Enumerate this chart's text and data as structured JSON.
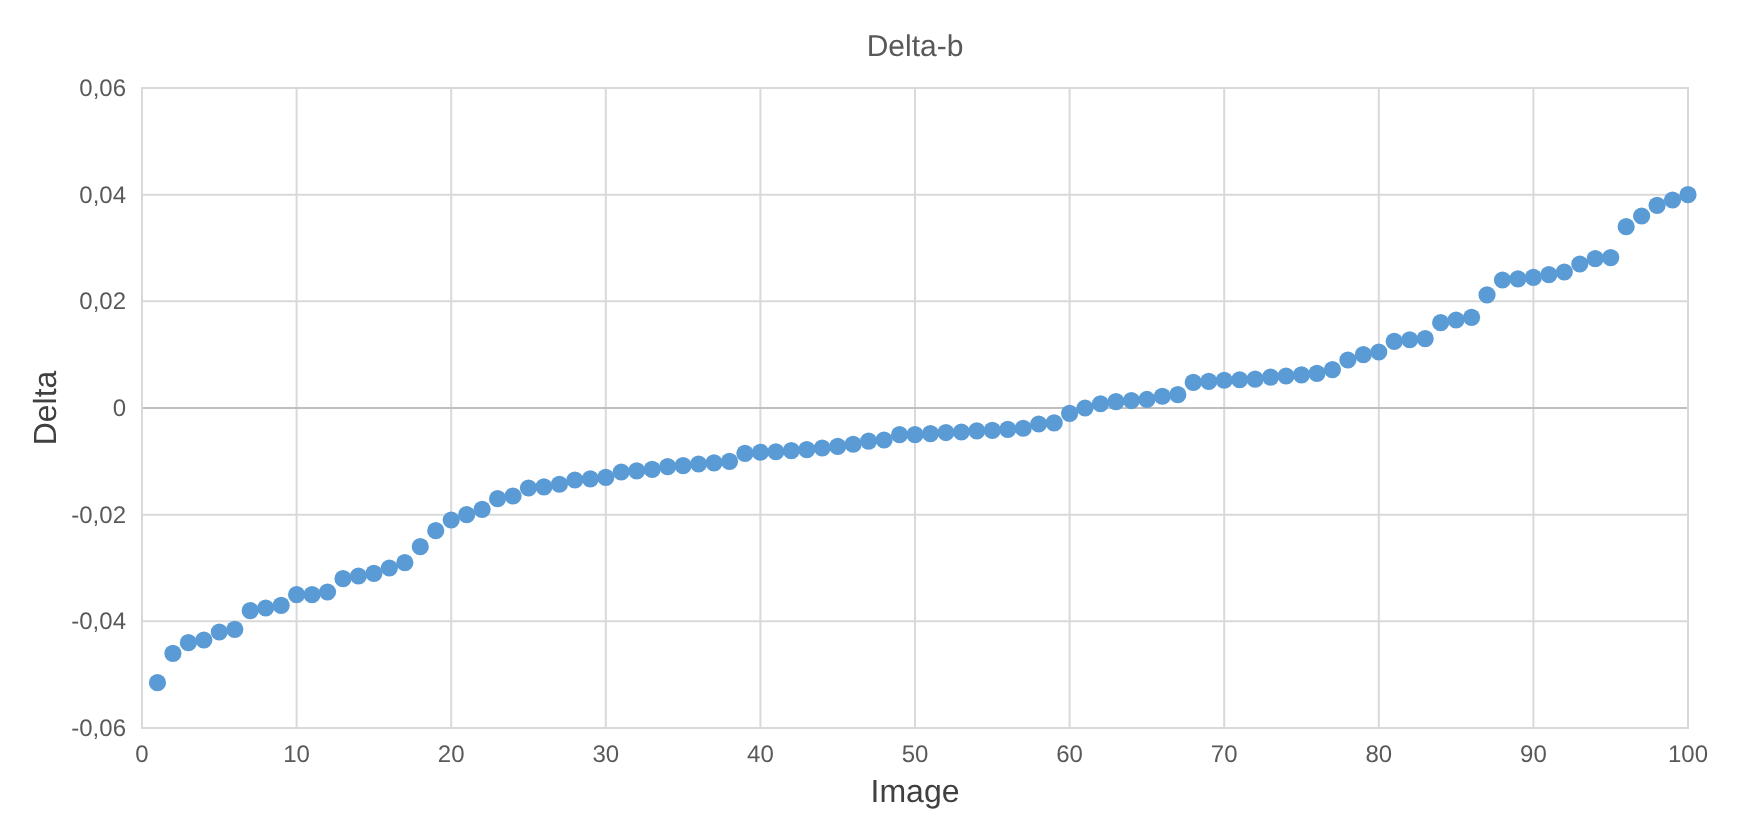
{
  "chart_data": {
    "type": "scatter",
    "title": "Delta-b",
    "xlabel": "Image",
    "ylabel": "Delta",
    "x": [
      1,
      2,
      3,
      4,
      5,
      6,
      7,
      8,
      9,
      10,
      11,
      12,
      13,
      14,
      15,
      16,
      17,
      18,
      19,
      20,
      21,
      22,
      23,
      24,
      25,
      26,
      27,
      28,
      29,
      30,
      31,
      32,
      33,
      34,
      35,
      36,
      37,
      38,
      39,
      40,
      41,
      42,
      43,
      44,
      45,
      46,
      47,
      48,
      49,
      50,
      51,
      52,
      53,
      54,
      55,
      56,
      57,
      58,
      59,
      60,
      61,
      62,
      63,
      64,
      65,
      66,
      67,
      68,
      69,
      70,
      71,
      72,
      73,
      74,
      75,
      76,
      77,
      78,
      79,
      80,
      81,
      82,
      83,
      84,
      85,
      86,
      87,
      88,
      89,
      90,
      91,
      92,
      93,
      94,
      95,
      96,
      97,
      98,
      99,
      100
    ],
    "series": [
      {
        "color": "#5b9bd5",
        "values": [
          -0.0515,
          -0.046,
          -0.044,
          -0.0435,
          -0.042,
          -0.0415,
          -0.038,
          -0.0375,
          -0.037,
          -0.035,
          -0.035,
          -0.0345,
          -0.032,
          -0.0315,
          -0.031,
          -0.03,
          -0.029,
          -0.026,
          -0.023,
          -0.021,
          -0.02,
          -0.019,
          -0.017,
          -0.0165,
          -0.015,
          -0.0148,
          -0.0143,
          -0.0135,
          -0.0133,
          -0.013,
          -0.012,
          -0.0118,
          -0.0115,
          -0.011,
          -0.0108,
          -0.0105,
          -0.0103,
          -0.01,
          -0.0085,
          -0.0083,
          -0.0082,
          -0.008,
          -0.0078,
          -0.0075,
          -0.0072,
          -0.0068,
          -0.0062,
          -0.006,
          -0.005,
          -0.005,
          -0.0048,
          -0.0046,
          -0.0045,
          -0.0043,
          -0.0042,
          -0.004,
          -0.0038,
          -0.003,
          -0.0028,
          -0.001,
          0,
          0.0008,
          0.0012,
          0.0014,
          0.0016,
          0.0022,
          0.0025,
          0.0048,
          0.005,
          0.0052,
          0.0053,
          0.0054,
          0.0058,
          0.006,
          0.0062,
          0.0065,
          0.0072,
          0.009,
          0.01,
          0.0105,
          0.0125,
          0.0128,
          0.013,
          0.016,
          0.0165,
          0.017,
          0.0212,
          0.024,
          0.0242,
          0.0245,
          0.025,
          0.0255,
          0.027,
          0.028,
          0.0282,
          0.034,
          0.036,
          0.038,
          0.039,
          0.04
        ]
      }
    ],
    "xlim": [
      0,
      100
    ],
    "xticks": [
      0,
      10,
      20,
      30,
      40,
      50,
      60,
      70,
      80,
      90,
      100
    ],
    "ylim": [
      -0.06,
      0.06
    ],
    "yticks": [
      {
        "value": -0.06,
        "label": "-0,06"
      },
      {
        "value": -0.04,
        "label": "-0,04"
      },
      {
        "value": -0.02,
        "label": "-0,02"
      },
      {
        "value": 0,
        "label": "0"
      },
      {
        "value": 0.02,
        "label": "0,02"
      },
      {
        "value": 0.04,
        "label": "0,04"
      },
      {
        "value": 0.06,
        "label": "0,06"
      }
    ],
    "grid": true,
    "marker": "circle"
  }
}
